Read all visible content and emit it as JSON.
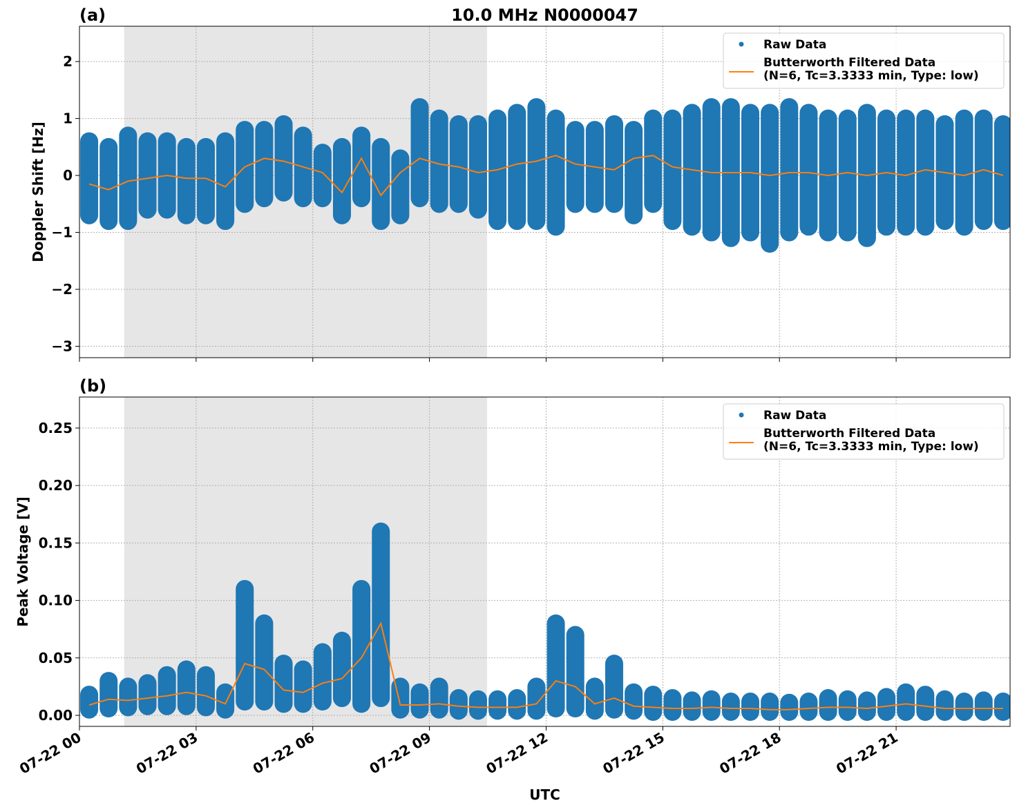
{
  "chart_data": [
    {
      "type": "line",
      "panel": "(a)",
      "title": "10.0 MHz N0000047",
      "ylabel": "Doppler Shift [Hz]",
      "xlim": [
        0,
        23.93
      ],
      "ylim": [
        -3.2,
        2.62
      ],
      "grid": true,
      "legend": "upper right",
      "shade": [
        1.15,
        10.48
      ],
      "xticks": [
        0,
        3,
        6,
        9,
        12,
        15,
        18,
        21
      ],
      "yticks": [
        {
          "value": -3,
          "label": "−3"
        },
        {
          "value": -2,
          "label": "−2"
        },
        {
          "value": -1,
          "label": "−1"
        },
        0,
        1,
        2
      ],
      "x": [
        0.25,
        0.75,
        1.25,
        1.75,
        2.25,
        2.75,
        3.25,
        3.75,
        4.25,
        4.75,
        5.25,
        5.75,
        6.25,
        6.75,
        7.25,
        7.75,
        8.25,
        8.75,
        9.25,
        9.75,
        10.25,
        10.75,
        11.25,
        11.75,
        12.25,
        12.75,
        13.25,
        13.75,
        14.25,
        14.75,
        15.25,
        15.75,
        16.25,
        16.75,
        17.25,
        17.75,
        18.25,
        18.75,
        19.25,
        19.75,
        20.25,
        20.75,
        21.25,
        21.75,
        22.25,
        22.75,
        23.25,
        23.75
      ],
      "series": [
        {
          "name": "Raw Data",
          "color": "#1f77b4",
          "low": [
            -0.7,
            -0.8,
            -0.8,
            -0.6,
            -0.6,
            -0.7,
            -0.7,
            -0.8,
            -0.5,
            -0.4,
            -0.3,
            -0.4,
            -0.4,
            -0.7,
            -0.4,
            -0.8,
            -0.7,
            -0.4,
            -0.5,
            -0.5,
            -0.6,
            -0.8,
            -0.8,
            -0.8,
            -0.9,
            -0.5,
            -0.5,
            -0.5,
            -0.7,
            -0.5,
            -0.8,
            -0.9,
            -1.0,
            -1.1,
            -1.0,
            -1.2,
            -1.0,
            -0.9,
            -1.0,
            -1.0,
            -1.1,
            -0.9,
            -0.9,
            -0.9,
            -0.8,
            -0.9,
            -0.8,
            -0.8
          ],
          "high": [
            0.6,
            0.5,
            0.7,
            0.6,
            0.6,
            0.5,
            0.5,
            0.6,
            0.8,
            0.8,
            0.9,
            0.7,
            0.4,
            0.5,
            0.7,
            0.5,
            0.3,
            1.2,
            1.0,
            0.9,
            0.9,
            1.0,
            1.1,
            1.2,
            1.0,
            0.8,
            0.8,
            0.9,
            0.8,
            1.0,
            1.0,
            1.1,
            1.2,
            1.2,
            1.1,
            1.1,
            1.2,
            1.1,
            1.0,
            1.0,
            1.1,
            1.0,
            1.0,
            1.0,
            0.9,
            1.0,
            1.0,
            0.9
          ]
        },
        {
          "name": "Butterworth Filtered Data",
          "note": "(N=6, Tc=3.3333 min, Type: low)",
          "color": "#ff7f0e",
          "values": [
            -0.15,
            -0.25,
            -0.1,
            -0.05,
            0.0,
            -0.05,
            -0.05,
            -0.2,
            0.15,
            0.3,
            0.25,
            0.15,
            0.05,
            -0.3,
            0.3,
            -0.35,
            0.05,
            0.3,
            0.2,
            0.15,
            0.05,
            0.1,
            0.2,
            0.25,
            0.35,
            0.2,
            0.15,
            0.1,
            0.3,
            0.35,
            0.15,
            0.1,
            0.05,
            0.05,
            0.05,
            0.0,
            0.05,
            0.05,
            0.0,
            0.05,
            0.0,
            0.05,
            0.0,
            0.1,
            0.05,
            0.0,
            0.1,
            0.0
          ]
        }
      ]
    },
    {
      "type": "line",
      "panel": "(b)",
      "xlabel": "UTC",
      "ylabel": "Peak Voltage [V]",
      "xlim": [
        0,
        23.93
      ],
      "ylim": [
        -0.0096,
        0.277
      ],
      "grid": true,
      "legend": "upper right",
      "shade": [
        1.15,
        10.48
      ],
      "xticks": [
        {
          "value": 0,
          "label": "07-22 00"
        },
        {
          "value": 3,
          "label": "07-22 03"
        },
        {
          "value": 6,
          "label": "07-22 06"
        },
        {
          "value": 9,
          "label": "07-22 09"
        },
        {
          "value": 12,
          "label": "07-22 12"
        },
        {
          "value": 15,
          "label": "07-22 15"
        },
        {
          "value": 18,
          "label": "07-22 18"
        },
        {
          "value": 21,
          "label": "07-22 21"
        }
      ],
      "yticks": [
        {
          "value": 0,
          "label": "0.00"
        },
        0.05,
        {
          "value": 0.1,
          "label": "0.10"
        },
        0.15,
        {
          "value": 0.2,
          "label": "0.20"
        },
        0.25
      ],
      "x": [
        0.25,
        0.75,
        1.25,
        1.75,
        2.25,
        2.75,
        3.25,
        3.75,
        4.25,
        4.75,
        5.25,
        5.75,
        6.25,
        6.75,
        7.25,
        7.75,
        8.25,
        8.75,
        9.25,
        9.75,
        10.25,
        10.75,
        11.25,
        11.75,
        12.25,
        12.75,
        13.25,
        13.75,
        14.25,
        14.75,
        15.25,
        15.75,
        16.25,
        16.75,
        17.25,
        17.75,
        18.25,
        18.75,
        19.25,
        19.75,
        20.25,
        20.75,
        21.25,
        21.75,
        22.25,
        22.75,
        23.25,
        23.75
      ],
      "series": [
        {
          "name": "Raw Data",
          "color": "#1f77b4",
          "low": [
            0.005,
            0.006,
            0.007,
            0.008,
            0.008,
            0.008,
            0.007,
            0.005,
            0.012,
            0.012,
            0.01,
            0.01,
            0.012,
            0.015,
            0.01,
            0.015,
            0.005,
            0.005,
            0.005,
            0.004,
            0.004,
            0.004,
            0.004,
            0.004,
            0.006,
            0.006,
            0.004,
            0.005,
            0.004,
            0.003,
            0.003,
            0.003,
            0.003,
            0.003,
            0.003,
            0.003,
            0.003,
            0.003,
            0.003,
            0.003,
            0.003,
            0.003,
            0.003,
            0.003,
            0.003,
            0.003,
            0.003,
            0.003
          ],
          "high": [
            0.018,
            0.03,
            0.025,
            0.028,
            0.035,
            0.04,
            0.035,
            0.02,
            0.11,
            0.08,
            0.045,
            0.04,
            0.055,
            0.065,
            0.11,
            0.16,
            0.025,
            0.02,
            0.025,
            0.015,
            0.014,
            0.014,
            0.015,
            0.025,
            0.08,
            0.07,
            0.025,
            0.045,
            0.02,
            0.018,
            0.015,
            0.013,
            0.014,
            0.012,
            0.012,
            0.012,
            0.011,
            0.012,
            0.015,
            0.014,
            0.013,
            0.016,
            0.02,
            0.018,
            0.014,
            0.012,
            0.013,
            0.012
          ]
        },
        {
          "name": "Butterworth Filtered Data",
          "note": "(N=6, Tc=3.3333 min, Type: low)",
          "color": "#ff7f0e",
          "values": [
            0.009,
            0.014,
            0.013,
            0.015,
            0.017,
            0.02,
            0.017,
            0.01,
            0.045,
            0.04,
            0.022,
            0.02,
            0.028,
            0.032,
            0.05,
            0.08,
            0.009,
            0.009,
            0.01,
            0.008,
            0.007,
            0.007,
            0.007,
            0.01,
            0.03,
            0.025,
            0.01,
            0.015,
            0.008,
            0.007,
            0.006,
            0.006,
            0.007,
            0.006,
            0.006,
            0.005,
            0.005,
            0.006,
            0.007,
            0.007,
            0.006,
            0.008,
            0.01,
            0.008,
            0.006,
            0.006,
            0.006,
            0.006
          ]
        }
      ]
    }
  ]
}
